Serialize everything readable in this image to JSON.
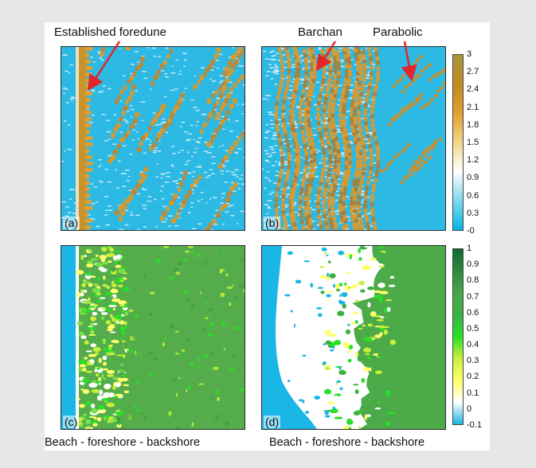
{
  "panels": {
    "a": {
      "label": "(a)"
    },
    "b": {
      "label": "(b)"
    },
    "c": {
      "label": "(c)"
    },
    "d": {
      "label": "(d)"
    }
  },
  "annotations": {
    "foredune": "Established foredune",
    "barchan": "Barchan",
    "parabolic": "Parabolic"
  },
  "captions": {
    "left": "Beach - foreshore - backshore",
    "right": "Beach - foreshore - backshore"
  },
  "colorbar_top": {
    "ticks": [
      "3",
      "2.7",
      "2.4",
      "2.1",
      "1.8",
      "1.5",
      "1.2",
      "0.9",
      "0.6",
      "0.3",
      "-0"
    ],
    "range": [
      0,
      3
    ],
    "colors": [
      "#00b8e6",
      "#7fd7ef",
      "#ffffff",
      "#f0d68a",
      "#e3a030",
      "#c08a22",
      "#a6953c"
    ]
  },
  "colorbar_bottom": {
    "ticks": [
      "1",
      "0.9",
      "0.8",
      "0.7",
      "0.6",
      "0.5",
      "0.4",
      "0.3",
      "0.2",
      "0.1",
      "0",
      "-0.1"
    ],
    "range": [
      -0.1,
      1
    ],
    "colors": [
      "#17b7e2",
      "#ffffff",
      "#ffff6a",
      "#c7f03a",
      "#28e028",
      "#3cb043",
      "#4aa64a",
      "#2e8a3c",
      "#0b6b2e"
    ]
  },
  "colors": {
    "arrow": "#e3262b",
    "water": "#1ab6e6",
    "grass": "#4aa84a"
  }
}
